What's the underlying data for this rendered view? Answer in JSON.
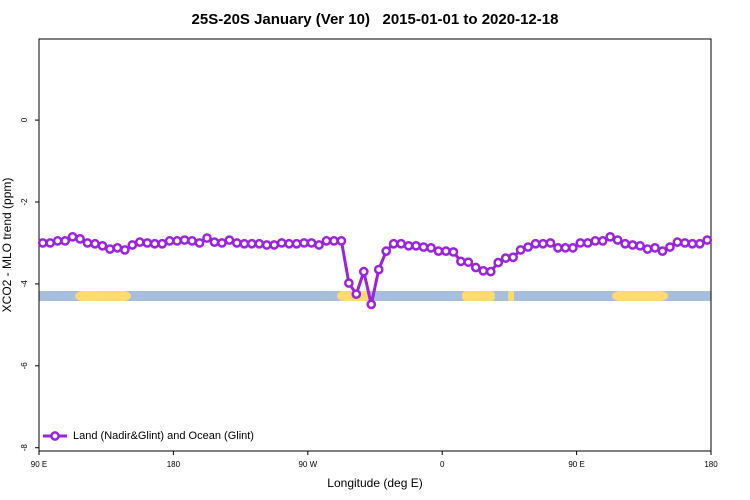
{
  "chart_data": {
    "type": "line",
    "title": "25S-20S January (Ver 10)   2015-01-01 to 2020-12-18",
    "xlabel": "Longitude (deg E)",
    "ylabel": "XCO2 - MLO trend (ppm)",
    "xlim": [
      90,
      540
    ],
    "ylim": [
      -8.08,
      1.98
    ],
    "xticks": [
      {
        "value": 90,
        "label": "90 E"
      },
      180,
      {
        "value": 270,
        "label": "90 W"
      },
      {
        "value": 360,
        "label": "0"
      },
      {
        "value": 450,
        "label": "90 E"
      },
      {
        "value": 540,
        "label": "180"
      }
    ],
    "yticks": [
      -8,
      -6,
      -4,
      -2,
      0
    ],
    "legend": "bottom-left",
    "x": [
      92.5,
      97.5,
      102.5,
      107.5,
      112.5,
      117.5,
      122.5,
      127.5,
      132.5,
      137.5,
      142.5,
      147.5,
      152.5,
      157.5,
      162.5,
      167.5,
      172.5,
      177.5,
      182.5,
      187.5,
      192.5,
      197.5,
      202.5,
      207.5,
      212.5,
      217.5,
      222.5,
      227.5,
      232.5,
      237.5,
      242.5,
      247.5,
      252.5,
      257.5,
      262.5,
      267.5,
      272.5,
      277.5,
      282.5,
      287.5,
      292.5,
      297.5,
      302.5,
      307.5,
      312.5,
      317.5,
      322.5,
      327.5,
      332.5,
      337.5,
      342.5,
      347.5,
      352.5,
      357.5,
      362.5,
      367.5,
      372.5,
      377.5,
      382.5,
      387.5,
      392.5,
      397.5,
      402.5,
      407.5,
      412.5,
      417.5,
      422.5,
      427.5,
      432.5,
      437.5,
      442.5,
      447.5,
      452.5,
      457.5,
      462.5,
      467.5,
      472.5,
      477.5,
      482.5,
      487.5,
      492.5,
      497.5,
      502.5,
      507.5,
      512.5,
      517.5,
      522.5,
      527.5,
      532.5,
      537.5
    ],
    "series": [
      {
        "name": "Land (Nadir&Glint) and Ocean (Glint)",
        "color": "#9b22e0",
        "values": [
          -3.0,
          -3.0,
          -2.95,
          -2.95,
          -2.85,
          -2.9,
          -3.0,
          -3.02,
          -3.07,
          -3.15,
          -3.12,
          -3.17,
          -3.05,
          -2.98,
          -3.0,
          -3.02,
          -3.02,
          -2.95,
          -2.95,
          -2.93,
          -2.95,
          -3.0,
          -2.88,
          -2.98,
          -3.0,
          -2.93,
          -3.0,
          -3.02,
          -3.02,
          -3.02,
          -3.05,
          -3.05,
          -3.0,
          -3.02,
          -3.02,
          -3.0,
          -3.0,
          -3.05,
          -2.95,
          -2.95,
          -2.95,
          -3.98,
          -4.25,
          -3.7,
          -4.5,
          -3.65,
          -3.2,
          -3.02,
          -3.02,
          -3.07,
          -3.07,
          -3.1,
          -3.12,
          -3.2,
          -3.2,
          -3.22,
          -3.45,
          -3.47,
          -3.6,
          -3.68,
          -3.7,
          -3.48,
          -3.37,
          -3.35,
          -3.17,
          -3.1,
          -3.02,
          -3.02,
          -3.0,
          -3.12,
          -3.12,
          -3.12,
          -3.0,
          -3.0,
          -2.95,
          -2.95,
          -2.85,
          -2.93,
          -3.02,
          -3.05,
          -3.07,
          -3.15,
          -3.12,
          -3.2,
          -3.1,
          -2.98,
          -3.0,
          -3.02,
          -3.02,
          -2.93
        ]
      }
    ]
  }
}
